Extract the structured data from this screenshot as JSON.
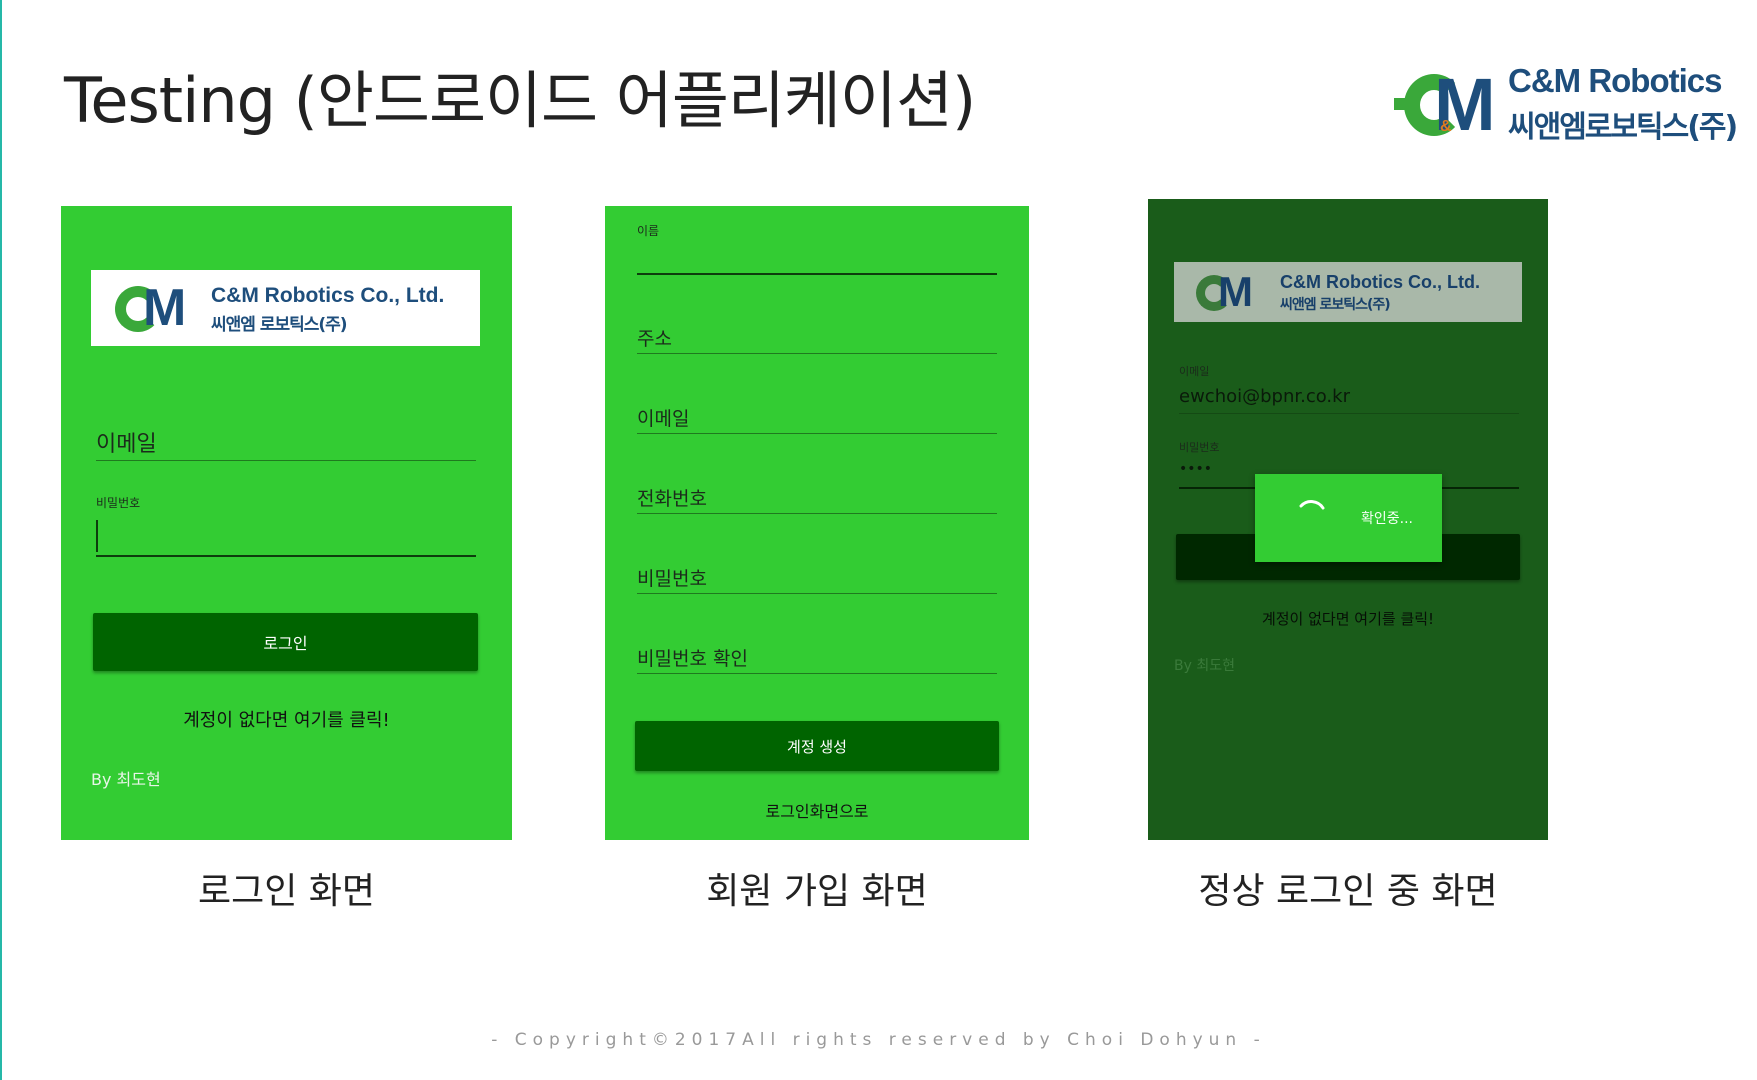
{
  "slide": {
    "title": "Testing (안드로이드 어플리케이션)",
    "footer": "- Copyright©2017All rights reserved by Choi Dohyun -"
  },
  "corp_logo": {
    "mark_letter": "M",
    "mark_amp": "&",
    "name_en": "C&M Robotics",
    "name_ko": "씨앤엠로보틱스(주)"
  },
  "app_logo": {
    "name_en": "C&M Robotics Co., Ltd.",
    "name_ko": "씨앤엠 로보틱스(주)",
    "mark_letter": "M"
  },
  "login_screen": {
    "email_hint": "이메일",
    "password_label": "비밀번호",
    "login_button": "로그인",
    "signup_link": "계정이 없다면 여기를 클릭!",
    "byline": "By 최도현",
    "caption": "로그인 화면"
  },
  "signup_screen": {
    "name_label": "이름",
    "address_hint": "주소",
    "email_hint": "이메일",
    "phone_hint": "전화번호",
    "password_hint": "비밀번호",
    "password_confirm_hint": "비밀번호 확인",
    "create_button": "계정 생성",
    "back_link": "로그인화면으로",
    "caption": "회원 가입 화면"
  },
  "logging_in_screen": {
    "email_label": "이메일",
    "email_value": "ewchoi@bpnr.co.kr",
    "password_label": "비밀번호",
    "password_value": "••••",
    "dialog_text": "확인중...",
    "signup_link": "계정이 없다면 여기를 클릭!",
    "byline": "By 최도현",
    "caption": "정상 로그인 중  화면"
  },
  "colors": {
    "panel_green": "#33cc33",
    "dim_green": "#1a5c1a",
    "button_green": "#006400",
    "brand_blue": "#1e4e7c",
    "brand_green": "#3aa83a"
  }
}
